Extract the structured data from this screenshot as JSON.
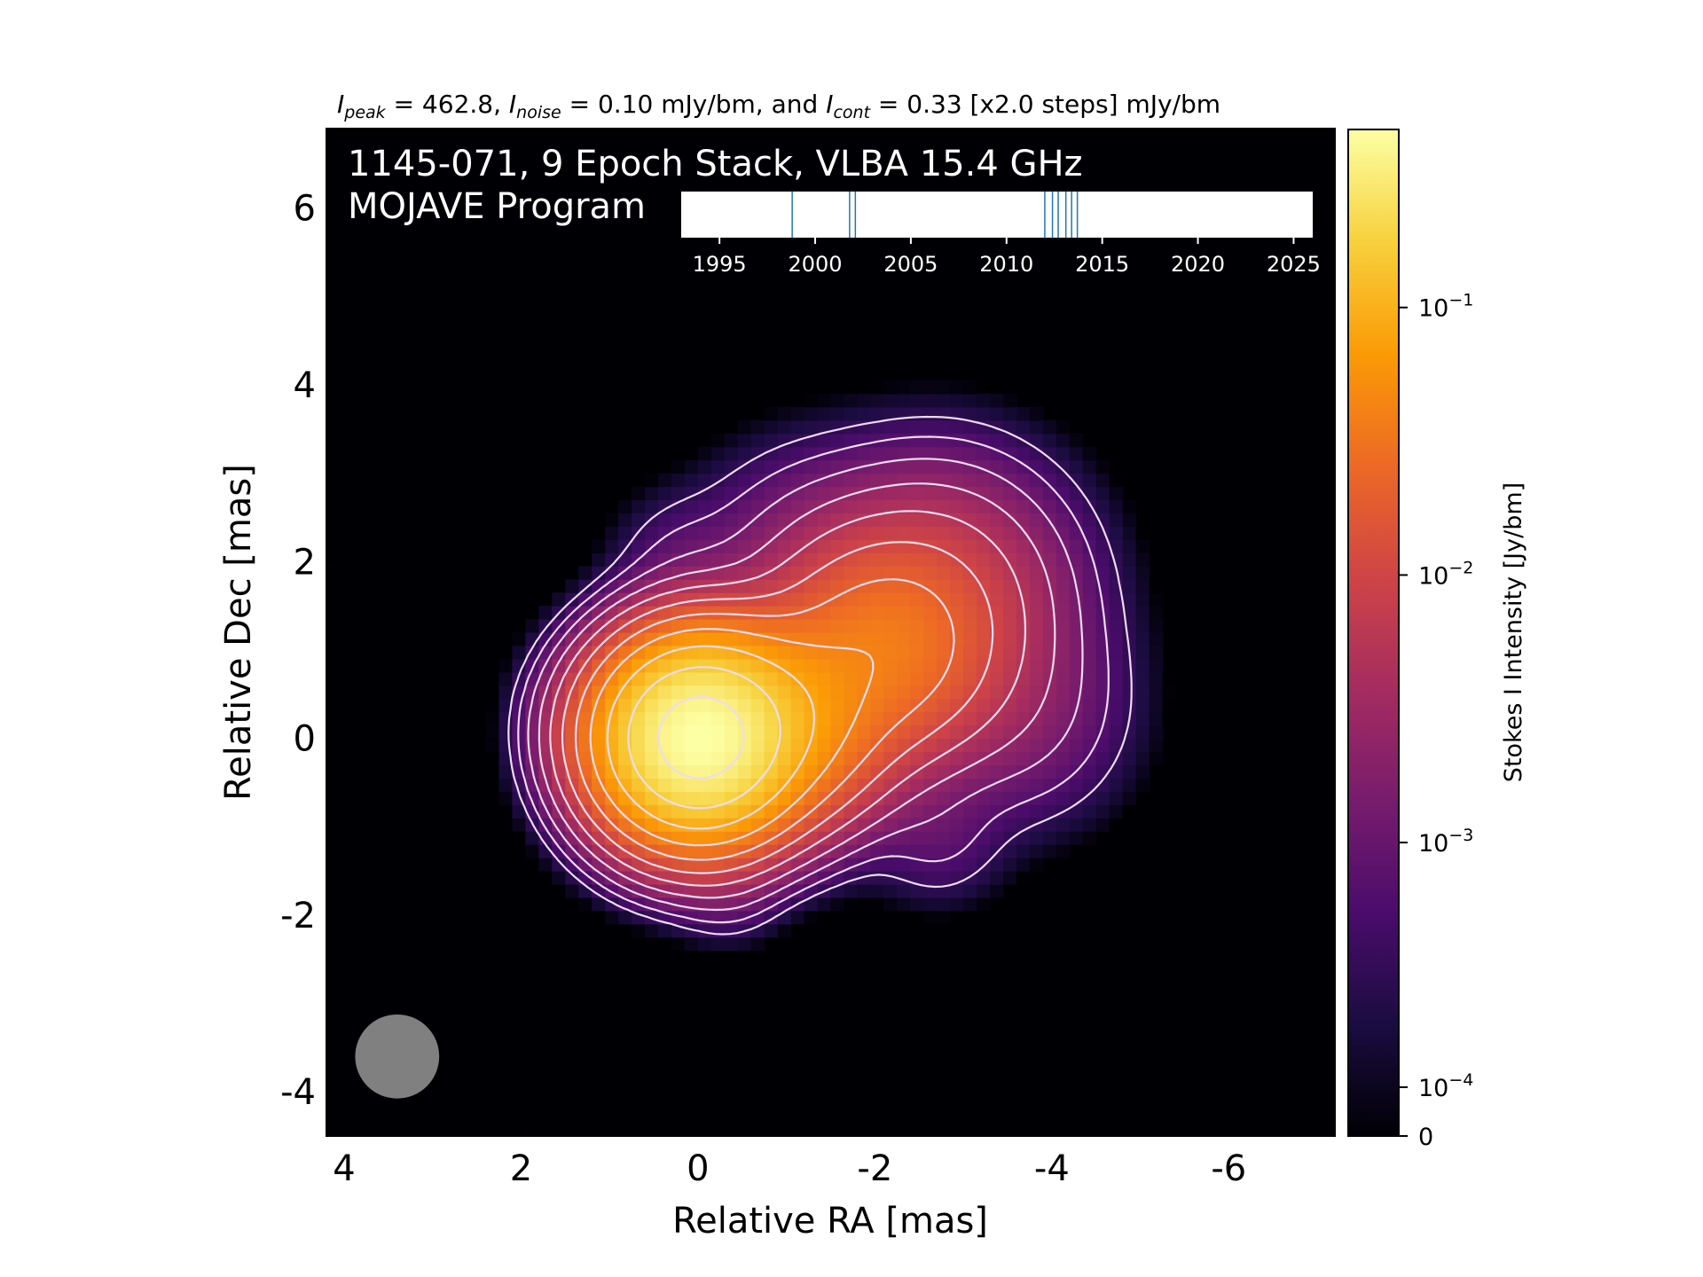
{
  "header": {
    "peak_label": "I",
    "peak_sub": "peak",
    "peak_value": " = 462.8, ",
    "noise_label": "I",
    "noise_sub": "noise",
    "noise_value": " = 0.10 mJy/bm, and ",
    "cont_label": "I",
    "cont_sub": "cont",
    "cont_value": " = 0.33 [x2.0 steps] mJy/bm"
  },
  "overlay": {
    "line1": "1145-071, 9 Epoch Stack, VLBA 15.4 GHz",
    "line2": "MOJAVE Program"
  },
  "colors": {
    "background_dark": "#000004",
    "contour": "#ecdcf0",
    "beam": "#808080",
    "epoch_line": "#1f77b4",
    "colormap": [
      "#000004",
      "#1b0c41",
      "#4a0c6b",
      "#781c6d",
      "#a52c60",
      "#cf4446",
      "#ed6925",
      "#fb9b06",
      "#f7d13d",
      "#fcffa4"
    ]
  },
  "chart_data": [
    {
      "type": "heatmap",
      "title": "",
      "xlabel": "Relative RA [mas]",
      "ylabel": "Relative Dec [mas]",
      "xlim": [
        4.2,
        -7.2
      ],
      "ylim": [
        -4.5,
        6.9
      ],
      "xticks": [
        4,
        2,
        0,
        -2,
        -4,
        -6
      ],
      "xtick_labels": [
        "4",
        "2",
        "0",
        "-2",
        "-4",
        "-6"
      ],
      "yticks": [
        -4,
        -2,
        0,
        2,
        4,
        6
      ],
      "ytick_labels": [
        "-4",
        "-2",
        "0",
        "2",
        "4",
        "6"
      ],
      "colormap": "inferno",
      "peak_position": [
        0,
        0
      ],
      "beam": {
        "ra": 3.4,
        "dec": -3.6,
        "diameter_mas": 0.95
      },
      "components": [
        {
          "ra": 0.0,
          "dec": 0.0,
          "peak_jy": 0.4628,
          "sigma_mas": 0.55
        },
        {
          "ra": -1.0,
          "dec": 0.25,
          "peak_jy": 0.06,
          "sigma_mas": 0.6
        },
        {
          "ra": -2.1,
          "dec": 1.0,
          "peak_jy": 0.03,
          "sigma_mas": 0.65
        },
        {
          "ra": -2.7,
          "dec": 1.6,
          "peak_jy": 0.008,
          "sigma_mas": 0.8
        },
        {
          "ra": -1.2,
          "dec": 2.0,
          "peak_jy": 0.0015,
          "sigma_mas": 0.7
        },
        {
          "ra": 0.2,
          "dec": 2.0,
          "peak_jy": 0.0006,
          "sigma_mas": 0.45
        },
        {
          "ra": -2.7,
          "dec": -1.1,
          "peak_jy": 0.0007,
          "sigma_mas": 0.45
        },
        {
          "ra": -0.35,
          "dec": -1.7,
          "peak_jy": 0.0006,
          "sigma_mas": 0.35
        },
        {
          "ra": -3.6,
          "dec": 0.3,
          "peak_jy": 0.0015,
          "sigma_mas": 0.7
        },
        {
          "ra": 0.9,
          "dec": 0.2,
          "peak_jy": 0.002,
          "sigma_mas": 0.5
        }
      ],
      "contour_base_jy": 0.00033,
      "contour_step": 2.0,
      "contour_count": 11
    },
    {
      "type": "timeline",
      "xlim": [
        1993,
        2026
      ],
      "xticks": [
        1995,
        2000,
        2005,
        2010,
        2015,
        2020,
        2025
      ],
      "xtick_labels": [
        "1995",
        "2000",
        "2005",
        "2010",
        "2015",
        "2020",
        "2025"
      ],
      "epochs": [
        1998.8,
        2001.8,
        2002.1,
        2012.0,
        2012.4,
        2012.7,
        2013.1,
        2013.4,
        2013.7
      ]
    },
    {
      "type": "colorbar",
      "label": "Stokes I Intensity [Jy/bm]",
      "scale": "log",
      "ticks": [
        0.1,
        0.01,
        0.001,
        0.0001,
        0
      ],
      "tick_labels": [
        {
          "base": "10",
          "exp": "−1"
        },
        {
          "base": "10",
          "exp": "−2"
        },
        {
          "base": "10",
          "exp": "−3"
        },
        {
          "base": "10",
          "exp": "−4"
        },
        {
          "base": "0",
          "exp": ""
        }
      ]
    }
  ]
}
